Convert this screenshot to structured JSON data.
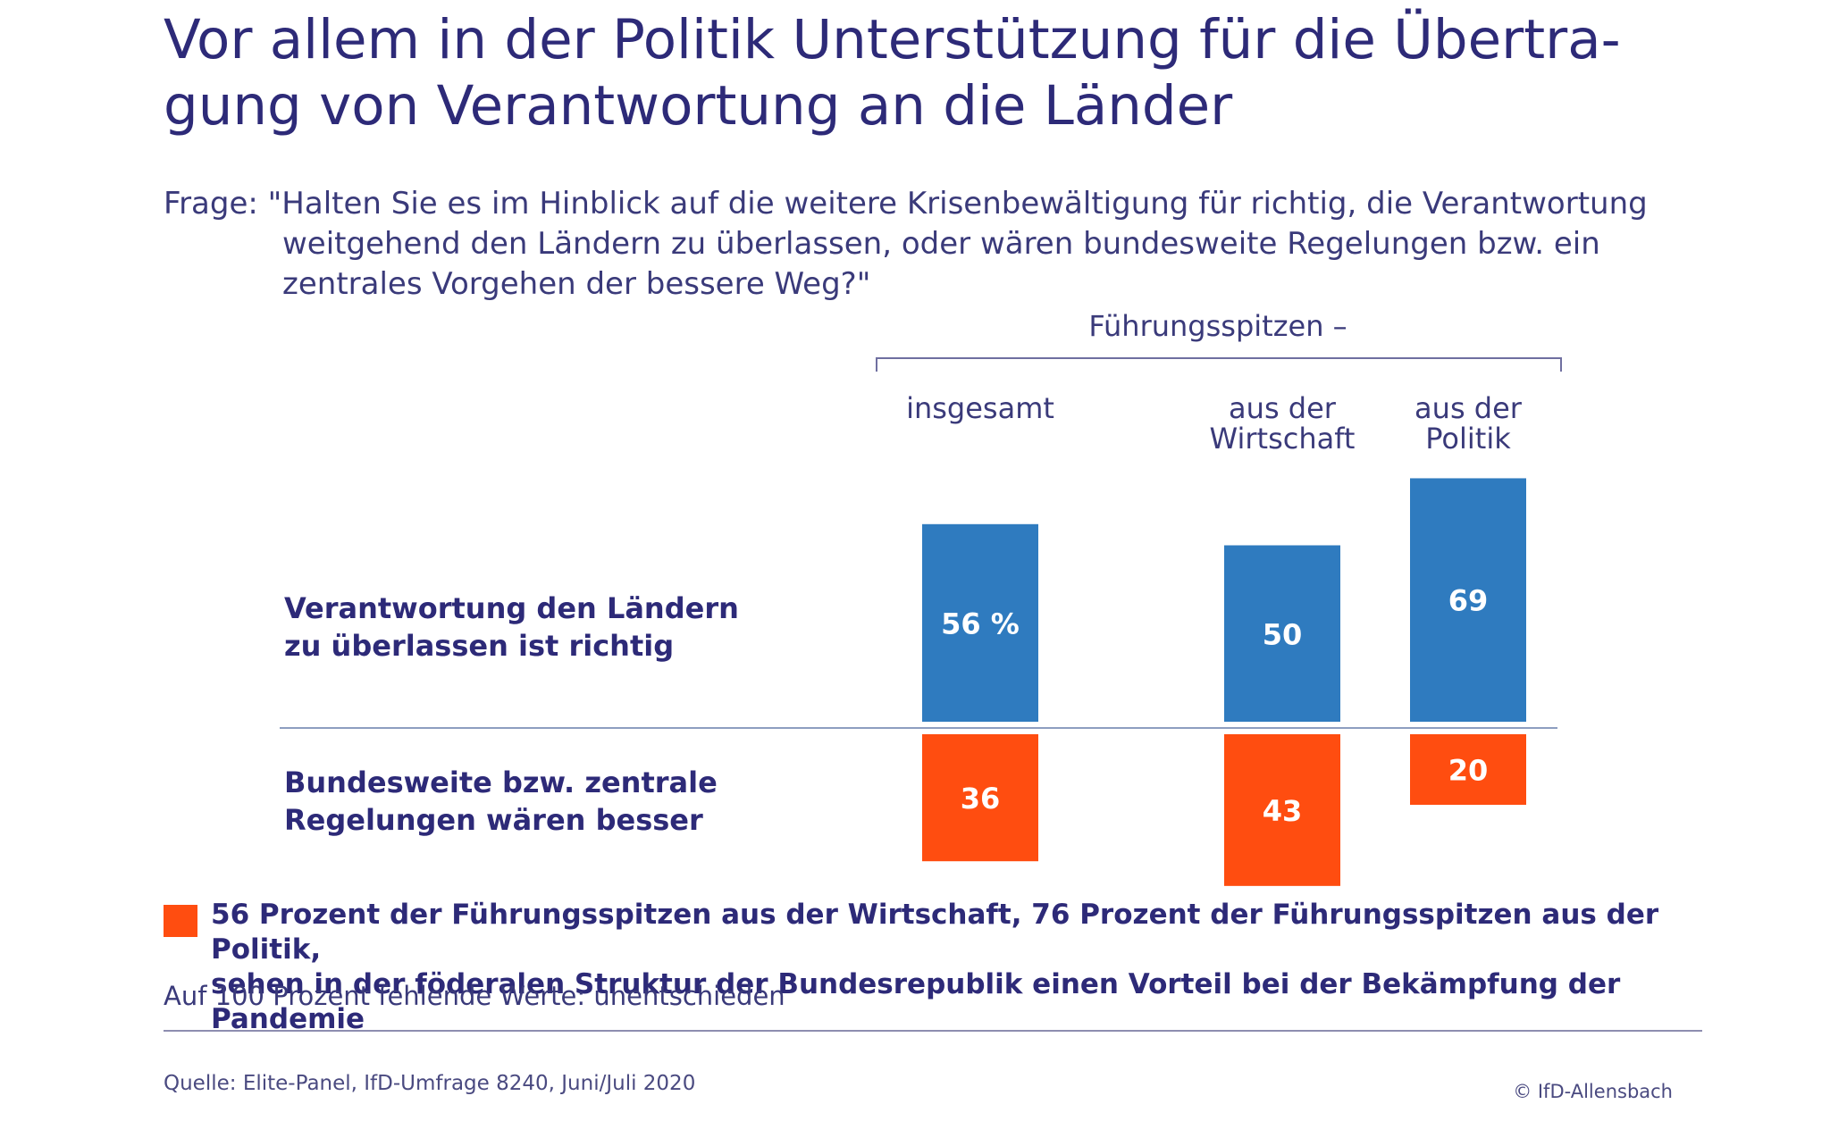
{
  "title": "Vor allem in der Politik Unterstützung für die Übertra-gung von Verantwortung an die Länder",
  "question": {
    "lead": "Frage:",
    "line1": "\"Halten Sie es im Hinblick auf die weitere Krisenbewältigung für richtig, die Verantwortung",
    "line2": "weitgehend den Ländern zu überlassen, oder wären bundesweite Regelungen bzw. ein",
    "line3": "zentrales Vorgehen der bessere Weg?\""
  },
  "group_header": "Führungsspitzen –",
  "chart_data": {
    "type": "bar",
    "categories": [
      "insgesamt",
      "aus der Wirtschaft",
      "aus der Politik"
    ],
    "category_lines": [
      [
        "insgesamt"
      ],
      [
        "aus der",
        "Wirtschaft"
      ],
      [
        "aus der",
        "Politik"
      ]
    ],
    "series": [
      {
        "name": "Verantwortung den Ländern zu überlassen ist richtig",
        "label_lines": [
          "Verantwortung den Ländern",
          "zu überlassen ist richtig"
        ],
        "values": [
          56,
          50,
          69
        ],
        "data_labels": [
          "56 %",
          "50",
          "69"
        ],
        "color": "#2f7bbf",
        "direction": "up"
      },
      {
        "name": "Bundesweite bzw. zentrale Regelungen wären besser",
        "label_lines": [
          "Bundesweite bzw. zentrale",
          "Regelungen wären besser"
        ],
        "values": [
          36,
          43,
          20
        ],
        "data_labels": [
          "36",
          "43",
          "20"
        ],
        "color": "#ff4d10",
        "direction": "down"
      }
    ],
    "unit": "%",
    "grid": false
  },
  "legend": {
    "line1": "56 Prozent der Führungsspitzen aus der Wirtschaft, 76 Prozent der Führungsspitzen aus der Politik,",
    "line2": "sehen in der föderalen Struktur der Bundesrepublik einen Vorteil bei der Bekämpfung der Pandemie",
    "color": "#ff4d10"
  },
  "footnote": "Auf 100 Prozent fehlende Werte: unentschieden",
  "source": "Quelle: Elite-Panel, IfD-Umfrage 8240, Juni/Juli 2020",
  "copyright": "© IfD-Allensbach"
}
